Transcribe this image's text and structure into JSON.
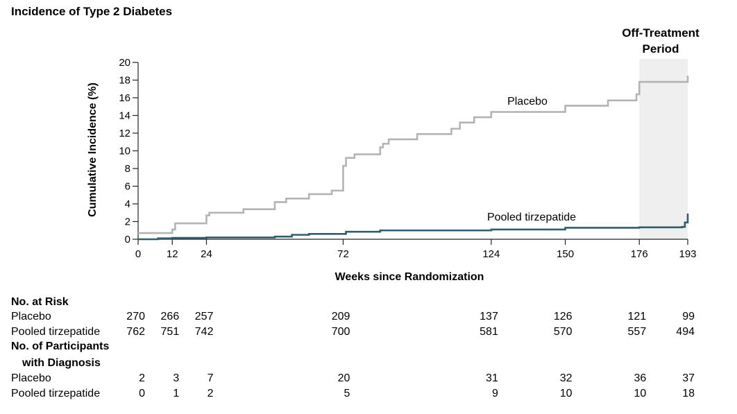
{
  "chart_data": {
    "type": "line",
    "title": "Incidence of Type 2 Diabetes",
    "xlabel": "Weeks since Randomization",
    "ylabel": "Cumulative Incidence (%)",
    "xlim": [
      0,
      193
    ],
    "ylim": [
      0,
      20
    ],
    "x_ticks": [
      "0",
      "12",
      "24",
      "72",
      "124",
      "150",
      "176",
      "193"
    ],
    "y_ticks": [
      "0",
      "2",
      "4",
      "6",
      "8",
      "10",
      "12",
      "14",
      "16",
      "18",
      "20"
    ],
    "shaded_region": {
      "label": "Off-Treatment Period",
      "x_start": 176,
      "x_end": 193
    },
    "grid": false,
    "series": [
      {
        "name": "Placebo",
        "color": "#b3b3b3",
        "steps": [
          [
            0,
            0.7
          ],
          [
            12,
            1.1
          ],
          [
            13,
            1.8
          ],
          [
            24,
            2.7
          ],
          [
            25,
            3.0
          ],
          [
            37,
            3.4
          ],
          [
            48,
            4.2
          ],
          [
            52,
            4.6
          ],
          [
            60,
            5.1
          ],
          [
            68,
            5.5
          ],
          [
            72,
            8.3
          ],
          [
            73,
            9.2
          ],
          [
            76,
            9.6
          ],
          [
            85,
            10.4
          ],
          [
            86,
            10.8
          ],
          [
            88,
            11.3
          ],
          [
            98,
            11.9
          ],
          [
            110,
            12.5
          ],
          [
            113,
            13.2
          ],
          [
            118,
            13.8
          ],
          [
            124,
            14.4
          ],
          [
            150,
            15.1
          ],
          [
            165,
            15.7
          ],
          [
            175,
            16.4
          ],
          [
            176,
            17.8
          ],
          [
            193,
            18.5
          ]
        ]
      },
      {
        "name": "Pooled tirzepatide",
        "color": "#2e5e6e",
        "steps": [
          [
            0,
            0
          ],
          [
            7,
            0.1
          ],
          [
            12,
            0.15
          ],
          [
            24,
            0.2
          ],
          [
            48,
            0.3
          ],
          [
            54,
            0.5
          ],
          [
            60,
            0.6
          ],
          [
            73,
            0.85
          ],
          [
            85,
            1.0
          ],
          [
            124,
            1.1
          ],
          [
            150,
            1.3
          ],
          [
            176,
            1.35
          ],
          [
            191,
            1.4
          ],
          [
            192,
            1.9
          ],
          [
            193,
            2.9
          ]
        ]
      }
    ]
  },
  "risk_table": {
    "section1_title": "No. at Risk",
    "section2_title_line1": "No. of Participants",
    "section2_title_line2": "with Diagnosis",
    "at_risk": [
      {
        "label": "Placebo",
        "values": [
          "270",
          "266",
          "257",
          "209",
          "137",
          "126",
          "121",
          "99"
        ]
      },
      {
        "label": "Pooled tirzepatide",
        "values": [
          "762",
          "751",
          "742",
          "700",
          "581",
          "570",
          "557",
          "494"
        ]
      }
    ],
    "with_diagnosis": [
      {
        "label": "Placebo",
        "values": [
          "2",
          "3",
          "7",
          "20",
          "31",
          "32",
          "36",
          "37"
        ]
      },
      {
        "label": "Pooled tirzepatide",
        "values": [
          "0",
          "1",
          "2",
          "5",
          "9",
          "10",
          "10",
          "18"
        ]
      }
    ]
  },
  "annotations": {
    "off_treatment_line1": "Off-Treatment",
    "off_treatment_line2": "Period",
    "placebo_label": "Placebo",
    "tirzepatide_label": "Pooled tirzepatide"
  }
}
